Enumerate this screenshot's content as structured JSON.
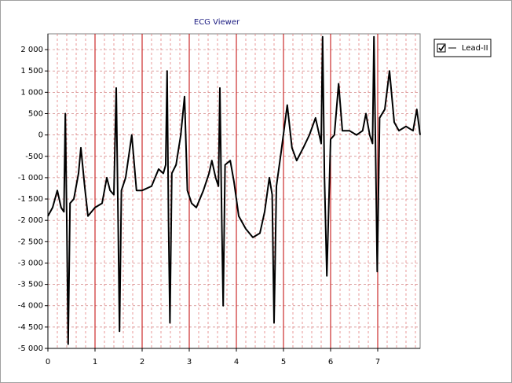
{
  "chart_data": {
    "type": "line",
    "title": "ECG  Viewer",
    "xlim": [
      0,
      7.9
    ],
    "ylim": [
      -5000,
      2370
    ],
    "xticks": [
      0,
      1,
      2,
      3,
      4,
      5,
      6,
      7
    ],
    "yticks": [
      {
        "value": 2000,
        "label": "2 000"
      },
      {
        "value": 1500,
        "label": "1 500"
      },
      {
        "value": 1000,
        "label": "1 000"
      },
      500,
      0,
      -500,
      {
        "value": -1000,
        "label": "-1 000"
      },
      {
        "value": -1500,
        "label": "-1 500"
      },
      {
        "value": -2000,
        "label": "-2 000"
      },
      {
        "value": -2500,
        "label": "-2 500"
      },
      {
        "value": -3000,
        "label": "-3 000"
      },
      {
        "value": -3500,
        "label": "-3 500"
      },
      {
        "value": -4000,
        "label": "-4 000"
      },
      {
        "value": -4500,
        "label": "-4 500"
      },
      {
        "value": -5000,
        "label": "-5 000"
      }
    ],
    "grid": true,
    "legend": "top-right",
    "x": [
      0,
      0.1,
      0.2,
      0.28,
      0.34,
      0.37,
      0.4,
      0.43,
      0.47,
      0.55,
      0.65,
      0.7,
      0.78,
      0.85,
      1.0,
      1.15,
      1.25,
      1.32,
      1.4,
      1.45,
      1.49,
      1.52,
      1.56,
      1.65,
      1.78,
      1.88,
      2.0,
      2.2,
      2.35,
      2.45,
      2.5,
      2.53,
      2.56,
      2.59,
      2.63,
      2.72,
      2.82,
      2.9,
      2.96,
      3.05,
      3.15,
      3.3,
      3.42,
      3.48,
      3.56,
      3.62,
      3.65,
      3.69,
      3.72,
      3.76,
      3.87,
      3.95,
      4.05,
      4.2,
      4.35,
      4.5,
      4.6,
      4.7,
      4.76,
      4.8,
      4.85,
      4.95,
      5.08,
      5.18,
      5.28,
      5.42,
      5.55,
      5.68,
      5.76,
      5.8,
      5.83,
      5.87,
      5.92,
      6.0,
      6.08,
      6.17,
      6.25,
      6.4,
      6.55,
      6.68,
      6.75,
      6.83,
      6.89,
      6.92,
      6.96,
      6.99,
      7.04,
      7.15,
      7.25,
      7.35,
      7.45,
      7.6,
      7.75,
      7.83,
      7.9
    ],
    "series": [
      {
        "name": "Lead-II",
        "color": "#000000",
        "values": [
          -1900,
          -1700,
          -1300,
          -1700,
          -1800,
          500,
          -2000,
          -4900,
          -1600,
          -1500,
          -900,
          -300,
          -1200,
          -1900,
          -1700,
          -1600,
          -1000,
          -1300,
          -1400,
          1100,
          -2000,
          -4600,
          -1300,
          -1000,
          0,
          -1300,
          -1300,
          -1200,
          -800,
          -900,
          -700,
          1500,
          -2000,
          -4400,
          -900,
          -700,
          0,
          900,
          -1300,
          -1600,
          -1700,
          -1300,
          -900,
          -600,
          -1000,
          -1200,
          1100,
          -2000,
          -4000,
          -700,
          -600,
          -1100,
          -1900,
          -2200,
          -2400,
          -2300,
          -1800,
          -1000,
          -1400,
          -4400,
          -1200,
          -400,
          700,
          -300,
          -600,
          -300,
          0,
          400,
          0,
          -200,
          2300,
          -1000,
          -3300,
          -100,
          0,
          1200,
          100,
          100,
          0,
          100,
          500,
          0,
          -200,
          2300,
          -800,
          -3200,
          400,
          600,
          1500,
          300,
          100,
          200,
          100,
          600,
          0
        ]
      }
    ]
  }
}
